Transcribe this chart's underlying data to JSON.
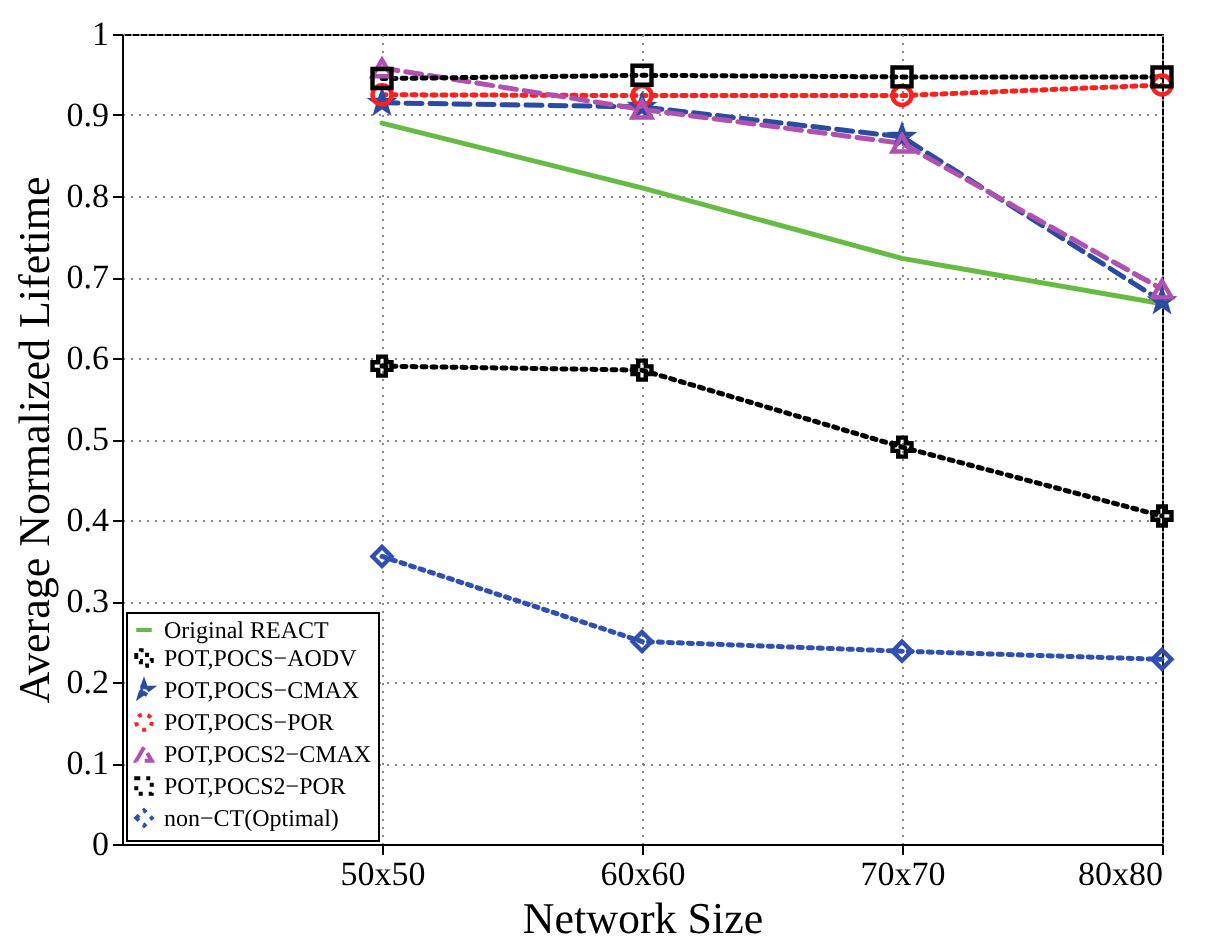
{
  "chart_data": {
    "type": "line",
    "xlabel": "Network Size",
    "ylabel": "Average Normalized Lifetime",
    "categories": [
      "50x50",
      "60x60",
      "70x70",
      "80x80"
    ],
    "ylim": [
      0,
      1
    ],
    "yticks": [
      0,
      0.1,
      0.2,
      0.3,
      0.4,
      0.5,
      0.6,
      0.7,
      0.8,
      0.9,
      1
    ],
    "grid": true,
    "legend": "bottom left",
    "series": [
      {
        "name": "Original REACT",
        "color": "#66bb44",
        "marker": "none",
        "line_style": "solid",
        "values": [
          0.89,
          0.81,
          0.723,
          0.667
        ]
      },
      {
        "name": "POT,POCS−AODV",
        "color": "#000000",
        "marker": "cross",
        "line_style": "dotted",
        "values": [
          0.59,
          0.585,
          0.49,
          0.405
        ]
      },
      {
        "name": "POT,POCS−CMAX",
        "color": "#2b4ba0",
        "marker": "star",
        "line_style": "dashed",
        "values": [
          0.915,
          0.91,
          0.873,
          0.67
        ]
      },
      {
        "name": "POT,POCS−POR",
        "color": "#ff2020",
        "marker": "circle",
        "line_style": "dotted",
        "values": [
          0.925,
          0.924,
          0.924,
          0.937
        ]
      },
      {
        "name": "POT,POCS2−CMAX",
        "color": "#b050b0",
        "marker": "triangle",
        "line_style": "dashed",
        "values": [
          0.958,
          0.907,
          0.865,
          0.685
        ]
      },
      {
        "name": "POT,POCS2−POR",
        "color": "#000000",
        "marker": "square",
        "line_style": "dotted",
        "values": [
          0.945,
          0.949,
          0.947,
          0.947
        ]
      },
      {
        "name": "non−CT(Optimal)",
        "color": "#3050b0",
        "marker": "diamond",
        "line_style": "dotted",
        "values": [
          0.355,
          0.25,
          0.238,
          0.228
        ]
      }
    ]
  }
}
